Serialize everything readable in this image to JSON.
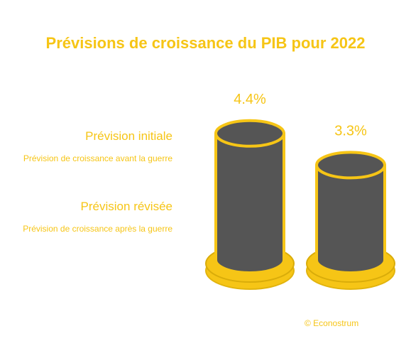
{
  "title": "Prévisions de croissance du PIB pour 2022",
  "colors": {
    "accent": "#F6C516",
    "cylinder_fill": "#555555",
    "cylinder_base": "#F6C516",
    "background": "#FFFFFF"
  },
  "legend": [
    {
      "label": "Prévision initiale",
      "description": "Prévision de croissance avant la guerre"
    },
    {
      "label": "Prévision révisée",
      "description": "Prévision de croissance après la guerre"
    }
  ],
  "credit": "© Econostrum",
  "chart_data": {
    "type": "bar",
    "style": "3d-cylinder",
    "title": "Prévisions de croissance du PIB pour 2022",
    "categories": [
      "Prévision initiale",
      "Prévision révisée"
    ],
    "values": [
      4.4,
      3.3
    ],
    "value_labels": [
      "4.4%",
      "3.3%"
    ],
    "unit": "%",
    "xlabel": "",
    "ylabel": "",
    "grid": false
  }
}
